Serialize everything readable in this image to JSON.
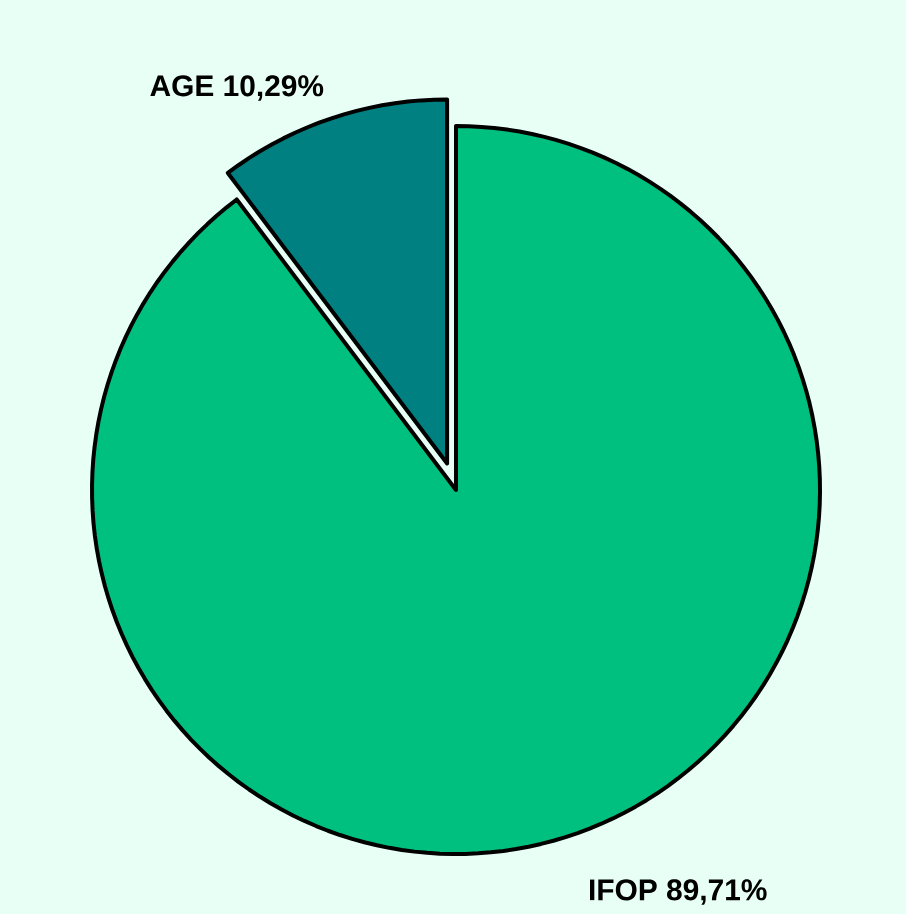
{
  "chart_data": {
    "type": "pie",
    "categories": [
      "AGE",
      "IFOP"
    ],
    "values": [
      10.29,
      89.71
    ],
    "value_labels": [
      "10,29%",
      "89,71%"
    ],
    "colors": [
      "#008080",
      "#00c080"
    ]
  }
}
